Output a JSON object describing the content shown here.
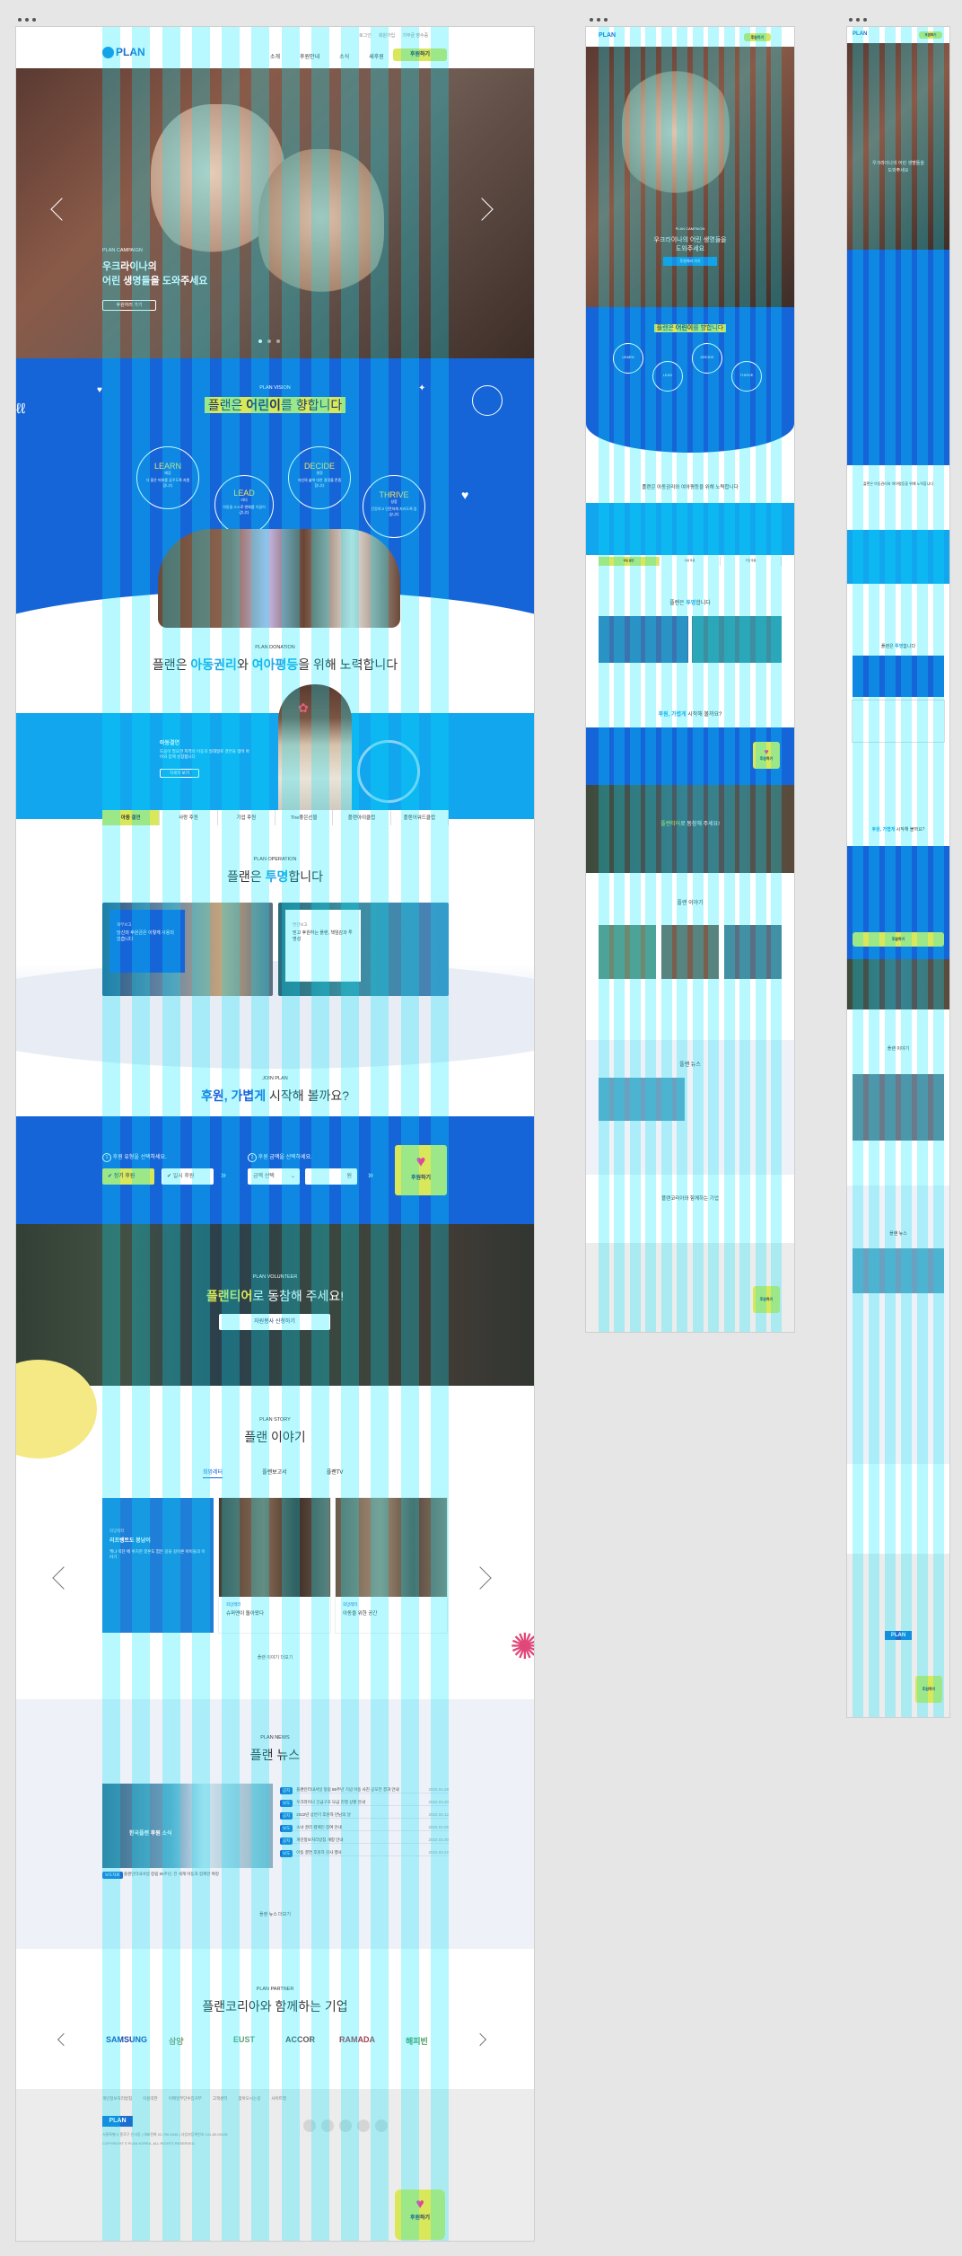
{
  "page": {
    "frame_count": 3
  },
  "brand": {
    "logo": "PLAN",
    "accent": "#1565d8",
    "sky": "#16a9ee",
    "lime": "#d9e85a",
    "navy": "#1d4f9a"
  },
  "header": {
    "utility_links": [
      "로그인",
      "회원가입",
      "기부금 영수증"
    ],
    "nav": [
      "소개",
      "후원안내",
      "소식",
      "새후원"
    ],
    "cta": "후원하기"
  },
  "hero": {
    "eyebrow": "PLAN CAMPAIGN",
    "title_line1": "우크라이나의",
    "title_line2": "어린 생명들을 도와주세요",
    "button": "후원하러 가기",
    "mobile_title_line1": "우크라이나의 어린 생명들을",
    "mobile_title_line2": "도와주세요"
  },
  "vision": {
    "eyebrow": "PLAN VISION",
    "title_pre": "플랜은 ",
    "title_hl": "어린이",
    "title_post": "를 향합니다",
    "circles": [
      {
        "en": "LEARN",
        "ko": "배움",
        "desc": "더 좋은 미래를 꿈꾸도록 지원합니다"
      },
      {
        "en": "LEAD",
        "ko": "리더",
        "desc": "아동들 스스로 변화를 이끌어 갑니다"
      },
      {
        "en": "DECIDE",
        "ko": "결정",
        "desc": "자신의 삶에 대한 결정을 존중합니다"
      },
      {
        "en": "THRIVE",
        "ko": "성장",
        "desc": "건강하고 안전하게 자라도록 돕습니다"
      }
    ]
  },
  "donation": {
    "eyebrow": "PLAN DONATION",
    "title_pre": "플랜은 ",
    "title_hl1": "아동권리",
    "title_mid": "와 ",
    "title_hl2": "여아평등",
    "title_post": "을 위해 노력합니다",
    "card_title": "아동결연",
    "card_desc": "도움이 필요한 지역의 아동과 일대일로 결연을 맺어 아이와 함께 성장합니다",
    "card_button": "자세히 보기",
    "tabs": [
      "아동 결연",
      "사랑 후원",
      "기업 후원",
      "The좋은선물",
      "플랜아이클럽",
      "플랜어워드클럽"
    ]
  },
  "operation": {
    "eyebrow": "PLAN OPERATION",
    "title_pre": "플랜은 ",
    "title_hl": "투명",
    "title_post": "합니다",
    "card1_label": "재무보고",
    "card1_text": "당신의 후원금은 이렇게 사용되었습니다",
    "card2_label": "연간보고",
    "card2_text": "믿고 후원하는 플랜, 책임감과 투명성"
  },
  "join": {
    "eyebrow": "JOIN PLAN",
    "title_hl": "후원, 가볍게",
    "title_post": " 시작해 볼까요?",
    "step1": "후원 유형을 선택하세요.",
    "step2": "후원 금액을 선택하세요.",
    "opt1": "정기 후원",
    "opt2": "일시 후원",
    "amount_select": "금액 선택",
    "amount_unit": "원",
    "submit": "후원하기"
  },
  "volunteer": {
    "eyebrow": "PLAN VOLUNTEER",
    "title_hl": "플랜티어",
    "title_post": "로 동참해 주세요!",
    "button": "자원봉사 신청하기"
  },
  "story": {
    "eyebrow": "PLAN STORY",
    "title": "플랜 이야기",
    "tabs": [
      "희망레터",
      "플랜보고서",
      "플랜TV"
    ],
    "cards": [
      {
        "tag": "희망레터",
        "title": "리프랭트도 봉남이",
        "desc": "케냐 북단 에 위치한 결혼도 힘든 길을 걸어온 아이들의 이야기"
      },
      {
        "tag": "희망레터",
        "title": "슈퍼맨이 돌아왔다"
      },
      {
        "tag": "희망레터",
        "title": "아동을 위한 공간"
      }
    ],
    "more": "플랜 이야기 더보기"
  },
  "news": {
    "eyebrow": "PLAN NEWS",
    "title": "플랜 뉴스",
    "feature_caption": "한국플랜 후원 소식",
    "feature_tag": "보도자료",
    "feature_desc": "플랜인터내셔널 창립 85주년, 전 세계 아동과 함께한 여정",
    "rows": [
      {
        "tag": "공지",
        "text": "플랜인터내셔널 창립 85주년 기념 아동 사진 공모전 결과 안내",
        "date": "2022.04.28"
      },
      {
        "tag": "보도",
        "text": "우크라이나 긴급구호 모금 진행 상황 안내",
        "date": "2022.04.20"
      },
      {
        "tag": "공지",
        "text": "2022년 상반기 후원자 만남의 날",
        "date": "2022.04.12"
      },
      {
        "tag": "보도",
        "text": "소녀 권리 캠페인 참여 안내",
        "date": "2022.04.05"
      },
      {
        "tag": "공지",
        "text": "개인정보처리방침 개정 안내",
        "date": "2022.03.30"
      },
      {
        "tag": "보도",
        "text": "아동 결연 후원자 감사 행사",
        "date": "2022.03.22"
      }
    ],
    "more": "플랜 뉴스 더보기"
  },
  "partner": {
    "eyebrow": "PLAN PARTNER",
    "title": "플랜코리아와 함께하는 기업",
    "logos": [
      "SAMSUNG",
      "삼양",
      "EUST",
      "ACCOR",
      "RAMADA",
      "해피빈"
    ]
  },
  "footer": {
    "links": [
      "개인정보처리방침",
      "이용약관",
      "이메일무단수집거부",
      "고객센터",
      "찾아오시는길",
      "사이트맵"
    ],
    "address": "서울특별시 종로구 인사동 | 대표전화 02-790-5436 | 사업자등록번호 101-82-09108",
    "copyright": "COPYRIGHT © PLAN KOREA. ALL RIGHTS RESERVED.",
    "float_cta": "후원하기",
    "top": "TOP"
  },
  "mobile": {
    "donation_title": "플랜은 아동권리와 여아평등을 위해 노력합니다",
    "tablet_cta": "후원하기"
  }
}
